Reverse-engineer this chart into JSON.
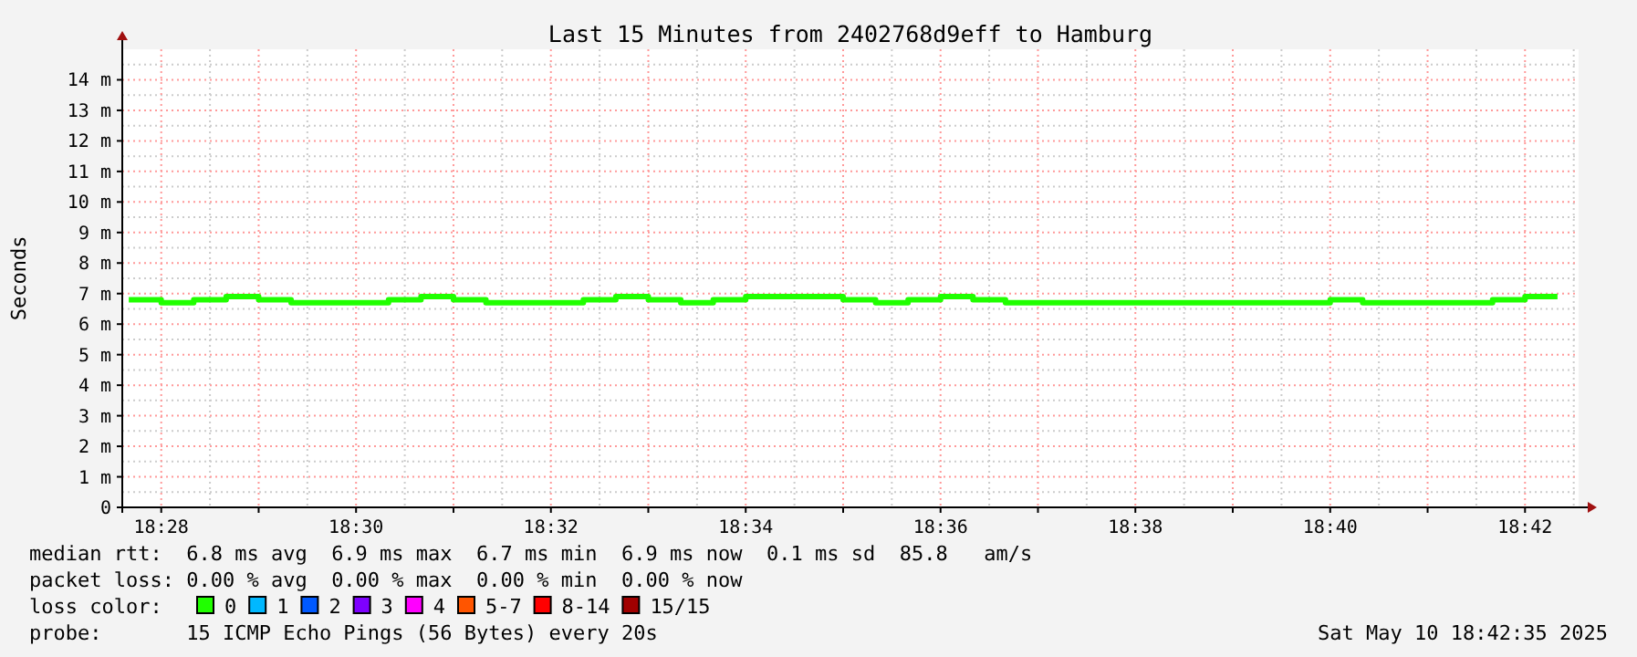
{
  "chart_data": {
    "type": "step",
    "title": "Last 15 Minutes from 2402768d9eff to Hamburg",
    "ylabel": "Seconds",
    "x": [
      "2025-05-10T18:27:40",
      "2025-05-10T18:28:00",
      "2025-05-10T18:28:20",
      "2025-05-10T18:28:40",
      "2025-05-10T18:29:00",
      "2025-05-10T18:29:20",
      "2025-05-10T18:29:40",
      "2025-05-10T18:30:00",
      "2025-05-10T18:30:20",
      "2025-05-10T18:30:40",
      "2025-05-10T18:31:00",
      "2025-05-10T18:31:20",
      "2025-05-10T18:31:40",
      "2025-05-10T18:32:00",
      "2025-05-10T18:32:20",
      "2025-05-10T18:32:40",
      "2025-05-10T18:33:00",
      "2025-05-10T18:33:20",
      "2025-05-10T18:33:40",
      "2025-05-10T18:34:00",
      "2025-05-10T18:34:20",
      "2025-05-10T18:34:40",
      "2025-05-10T18:35:00",
      "2025-05-10T18:35:20",
      "2025-05-10T18:35:40",
      "2025-05-10T18:36:00",
      "2025-05-10T18:36:20",
      "2025-05-10T18:36:40",
      "2025-05-10T18:37:00",
      "2025-05-10T18:37:20",
      "2025-05-10T18:37:40",
      "2025-05-10T18:38:00",
      "2025-05-10T18:38:20",
      "2025-05-10T18:38:40",
      "2025-05-10T18:39:00",
      "2025-05-10T18:39:20",
      "2025-05-10T18:39:40",
      "2025-05-10T18:40:00",
      "2025-05-10T18:40:20",
      "2025-05-10T18:40:40",
      "2025-05-10T18:41:00",
      "2025-05-10T18:41:20",
      "2025-05-10T18:41:40",
      "2025-05-10T18:42:00",
      "2025-05-10T18:42:20"
    ],
    "series": [
      {
        "color": "#20ff00",
        "values": [
          6.8,
          6.7,
          6.8,
          6.9,
          6.8,
          6.7,
          6.7,
          6.7,
          6.8,
          6.9,
          6.8,
          6.7,
          6.7,
          6.7,
          6.8,
          6.9,
          6.8,
          6.7,
          6.8,
          6.9,
          6.9,
          6.9,
          6.8,
          6.7,
          6.8,
          6.9,
          6.8,
          6.7,
          6.7,
          6.7,
          6.7,
          6.7,
          6.7,
          6.7,
          6.7,
          6.7,
          6.7,
          6.8,
          6.7,
          6.7,
          6.7,
          6.7,
          6.8,
          6.9,
          6.9
        ]
      }
    ],
    "xlim": [
      "2025-05-10T18:27:36",
      "2025-05-10T18:42:33"
    ],
    "xticks": [
      {
        "value": "2025-05-10T18:28:00",
        "label": "18:28"
      },
      {
        "value": "2025-05-10T18:29:00",
        "label": null
      },
      {
        "value": "2025-05-10T18:30:00",
        "label": "18:30"
      },
      {
        "value": "2025-05-10T18:31:00",
        "label": null
      },
      {
        "value": "2025-05-10T18:32:00",
        "label": "18:32"
      },
      {
        "value": "2025-05-10T18:33:00",
        "label": null
      },
      {
        "value": "2025-05-10T18:34:00",
        "label": "18:34"
      },
      {
        "value": "2025-05-10T18:35:00",
        "label": null
      },
      {
        "value": "2025-05-10T18:36:00",
        "label": "18:36"
      },
      {
        "value": "2025-05-10T18:37:00",
        "label": null
      },
      {
        "value": "2025-05-10T18:38:00",
        "label": "18:38"
      },
      {
        "value": "2025-05-10T18:39:00",
        "label": null
      },
      {
        "value": "2025-05-10T18:40:00",
        "label": "18:40"
      },
      {
        "value": "2025-05-10T18:41:00",
        "label": null
      },
      {
        "value": "2025-05-10T18:42:00",
        "label": "18:42"
      }
    ],
    "ylim": [
      0,
      15
    ],
    "yticks": [
      0,
      {
        "value": 1,
        "label": "1 m"
      },
      {
        "value": 2,
        "label": "2 m"
      },
      {
        "value": 3,
        "label": "3 m"
      },
      {
        "value": 4,
        "label": "4 m"
      },
      {
        "value": 5,
        "label": "5 m"
      },
      {
        "value": 6,
        "label": "6 m"
      },
      {
        "value": 7,
        "label": "7 m"
      },
      {
        "value": 8,
        "label": "8 m"
      },
      {
        "value": 9,
        "label": "9 m"
      },
      {
        "value": 10,
        "label": "10 m"
      },
      {
        "value": 11,
        "label": "11 m"
      },
      {
        "value": 12,
        "label": "12 m"
      },
      {
        "value": 13,
        "label": "13 m"
      },
      {
        "value": 14,
        "label": "14 m"
      }
    ],
    "grid": true,
    "annotations": [
      "median rtt:  6.8 ms avg  6.9 ms max  6.7 ms min  6.9 ms now  0.1 ms sd  85.8   am/s",
      "packet loss: 0.00 % avg  0.00 % max  0.00 % min  0.00 % now",
      "loss color:",
      "0",
      "1",
      "2",
      "3",
      "4",
      "5-7",
      "8-14",
      "15/15",
      "probe:       15 ICMP Echo Pings (56 Bytes) every 20s",
      "Sat May 10 18:42:35 2025"
    ]
  }
}
